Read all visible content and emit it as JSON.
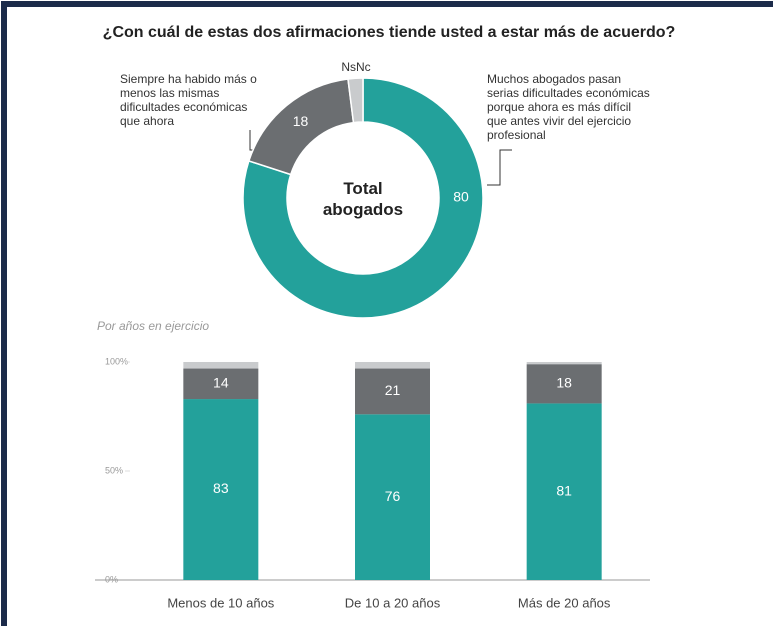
{
  "chart_data": [
    {
      "type": "donut",
      "title": "¿Con cuál de estas dos afirmaciones tiende usted a estar más de acuerdo?",
      "center_label": "Total abogados",
      "categories": [
        "Muchos abogados pasan serias dificultades económicas porque ahora es más difícil que antes vivir del ejercicio profesional",
        "Siempre ha habido más o menos las mismas dificultades económicas que ahora",
        "NsNc"
      ],
      "values": [
        80,
        18,
        2
      ],
      "colors": [
        "#23a19b",
        "#6b6e71",
        "#c9cbcd"
      ]
    },
    {
      "type": "stacked_bar",
      "subtitle": "Por años en ejercicio",
      "categories": [
        "Menos de 10 años",
        "De 10 a 20 años",
        "Más de 20 años"
      ],
      "series": [
        {
          "color": "#23a19b",
          "values": [
            83,
            76,
            81
          ]
        },
        {
          "color": "#6b6e71",
          "values": [
            14,
            21,
            18
          ]
        },
        {
          "color": "#c9cbcd",
          "values": [
            3,
            3,
            1
          ]
        }
      ],
      "ylim": [
        0,
        100
      ],
      "yticks": [
        {
          "value": 0,
          "label": "0%"
        },
        {
          "value": 50,
          "label": "50%"
        },
        {
          "value": 100,
          "label": "100%"
        }
      ]
    }
  ]
}
